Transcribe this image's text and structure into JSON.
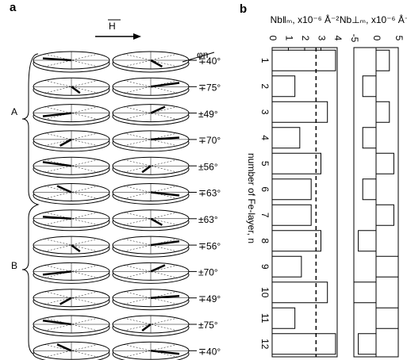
{
  "panel_a": {
    "label": "a",
    "field_label": "H",
    "angle_label": "φn",
    "group_labels": [
      "A",
      "B"
    ],
    "angles": [
      "∓40°",
      "∓75°",
      "±49°",
      "∓70°",
      "±56°",
      "∓63°",
      "±63°",
      "∓56°",
      "±70°",
      "∓49°",
      "±75°",
      "∓40°"
    ]
  },
  "panel_b": {
    "label": "b",
    "axis_label": "number of Fe-layer, n"
  },
  "chart_data": [
    {
      "type": "bar",
      "title": "Nb‖ₘ, x10⁻⁶ Å⁻²",
      "categories": [
        "1",
        "2",
        "3",
        "4",
        "5",
        "6",
        "7",
        "8",
        "9",
        "10",
        "11",
        "12"
      ],
      "values": [
        3.9,
        1.4,
        3.4,
        1.7,
        3.0,
        2.4,
        2.4,
        3.0,
        1.8,
        3.4,
        1.4,
        3.9
      ],
      "color": "none",
      "xlim": [
        0,
        4
      ],
      "xticks": [
        0,
        1,
        2,
        3,
        4
      ],
      "reference_line": 2.7
    },
    {
      "type": "bar",
      "title": "Nb⊥ₘ, x10⁻⁶ Å⁻²",
      "categories": [
        "1",
        "2",
        "3",
        "4",
        "5",
        "6",
        "7",
        "8",
        "9",
        "10",
        "11",
        "12"
      ],
      "values": [
        3,
        -3,
        3,
        -3,
        4,
        -3,
        4,
        -4,
        5,
        -5,
        5,
        -4
      ],
      "color": "none",
      "xlim": [
        -5,
        5
      ],
      "xticks": [
        -5,
        0,
        5
      ]
    }
  ]
}
